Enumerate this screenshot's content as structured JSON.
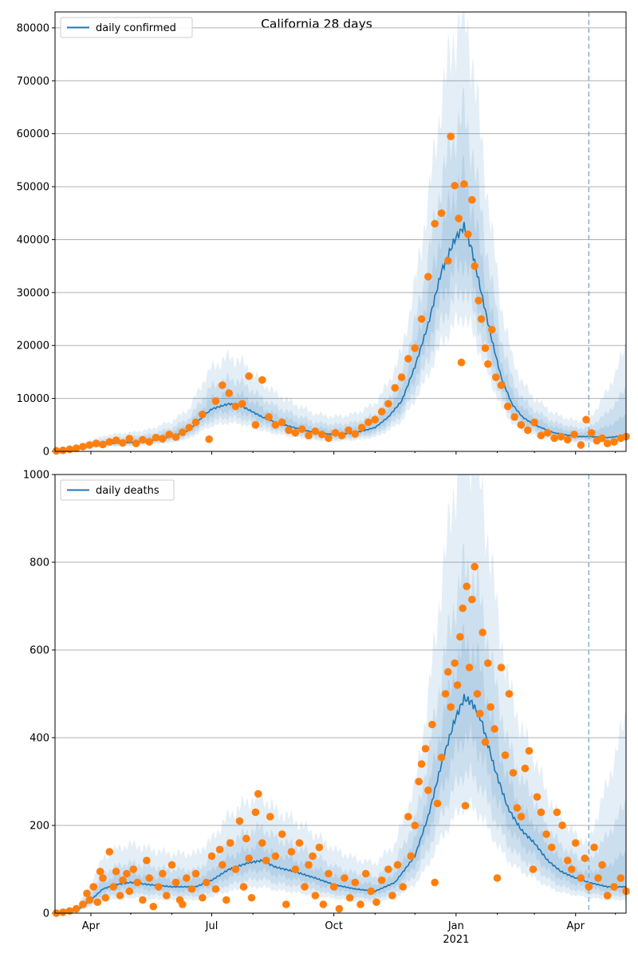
{
  "chart_data": [
    {
      "type": "line",
      "title": "California 28 days",
      "legend": {
        "label": "daily confirmed",
        "placement": "top-left"
      },
      "ylim": [
        0,
        83000
      ],
      "yticks": [
        0,
        10000,
        20000,
        30000,
        40000,
        50000,
        60000,
        70000,
        80000
      ],
      "grid": "y",
      "x_unit": "days since 2020-03-01",
      "xlim": [
        4,
        434
      ],
      "forecast_start_day": 406,
      "band_factors": {
        "outer": [
          0.6,
          1.95
        ],
        "mid": [
          0.72,
          1.5
        ],
        "inner": [
          0.85,
          1.22
        ]
      },
      "median": [
        [
          4,
          0
        ],
        [
          20,
          300
        ],
        [
          31,
          1000
        ],
        [
          45,
          1500
        ],
        [
          61,
          1700
        ],
        [
          75,
          2000
        ],
        [
          92,
          2800
        ],
        [
          105,
          4000
        ],
        [
          115,
          6500
        ],
        [
          122,
          8000
        ],
        [
          135,
          9000
        ],
        [
          145,
          8500
        ],
        [
          160,
          6500
        ],
        [
          170,
          5500
        ],
        [
          184,
          4500
        ],
        [
          200,
          3500
        ],
        [
          214,
          3200
        ],
        [
          230,
          3500
        ],
        [
          245,
          4500
        ],
        [
          255,
          6500
        ],
        [
          265,
          9500
        ],
        [
          275,
          16000
        ],
        [
          285,
          24000
        ],
        [
          295,
          34000
        ],
        [
          305,
          40000
        ],
        [
          312,
          42500
        ],
        [
          318,
          38000
        ],
        [
          325,
          30000
        ],
        [
          333,
          21000
        ],
        [
          340,
          14000
        ],
        [
          348,
          9000
        ],
        [
          356,
          6500
        ],
        [
          365,
          5000
        ],
        [
          380,
          3500
        ],
        [
          396,
          2800
        ],
        [
          406,
          2800
        ],
        [
          420,
          2600
        ],
        [
          434,
          3000
        ]
      ],
      "observed": [
        [
          5,
          100
        ],
        [
          10,
          200
        ],
        [
          15,
          400
        ],
        [
          20,
          600
        ],
        [
          25,
          900
        ],
        [
          30,
          1200
        ],
        [
          35,
          1500
        ],
        [
          40,
          1300
        ],
        [
          45,
          1800
        ],
        [
          50,
          2100
        ],
        [
          55,
          1600
        ],
        [
          60,
          2400
        ],
        [
          65,
          1500
        ],
        [
          70,
          2200
        ],
        [
          75,
          1800
        ],
        [
          80,
          2600
        ],
        [
          85,
          2400
        ],
        [
          90,
          3200
        ],
        [
          95,
          2700
        ],
        [
          100,
          3600
        ],
        [
          105,
          4500
        ],
        [
          110,
          5500
        ],
        [
          115,
          7000
        ],
        [
          120,
          2300
        ],
        [
          125,
          9500
        ],
        [
          130,
          12500
        ],
        [
          135,
          11000
        ],
        [
          140,
          8500
        ],
        [
          145,
          9000
        ],
        [
          150,
          14200
        ],
        [
          155,
          5000
        ],
        [
          160,
          13500
        ],
        [
          165,
          6500
        ],
        [
          170,
          5000
        ],
        [
          175,
          5500
        ],
        [
          180,
          4000
        ],
        [
          185,
          3500
        ],
        [
          190,
          4200
        ],
        [
          195,
          3000
        ],
        [
          200,
          3800
        ],
        [
          205,
          3200
        ],
        [
          210,
          2500
        ],
        [
          215,
          3500
        ],
        [
          220,
          3000
        ],
        [
          225,
          4000
        ],
        [
          230,
          3300
        ],
        [
          235,
          4500
        ],
        [
          240,
          5500
        ],
        [
          245,
          6000
        ],
        [
          250,
          7500
        ],
        [
          255,
          9000
        ],
        [
          260,
          12000
        ],
        [
          265,
          14000
        ],
        [
          270,
          17500
        ],
        [
          275,
          19500
        ],
        [
          280,
          25000
        ],
        [
          285,
          33000
        ],
        [
          290,
          43000
        ],
        [
          295,
          45000
        ],
        [
          300,
          36000
        ],
        [
          302,
          59500
        ],
        [
          305,
          50200
        ],
        [
          308,
          44000
        ],
        [
          310,
          16800
        ],
        [
          312,
          50500
        ],
        [
          315,
          41000
        ],
        [
          318,
          47500
        ],
        [
          320,
          35000
        ],
        [
          323,
          28500
        ],
        [
          325,
          25000
        ],
        [
          328,
          19500
        ],
        [
          330,
          16500
        ],
        [
          333,
          23000
        ],
        [
          336,
          14000
        ],
        [
          340,
          12500
        ],
        [
          345,
          8500
        ],
        [
          350,
          6500
        ],
        [
          355,
          5000
        ],
        [
          360,
          4000
        ],
        [
          365,
          5500
        ],
        [
          370,
          3000
        ],
        [
          375,
          3500
        ],
        [
          380,
          2500
        ],
        [
          385,
          2800
        ],
        [
          390,
          2200
        ],
        [
          395,
          3200
        ],
        [
          400,
          1200
        ],
        [
          404,
          6000
        ],
        [
          408,
          3500
        ],
        [
          412,
          2000
        ],
        [
          416,
          2500
        ],
        [
          420,
          1500
        ],
        [
          425,
          1800
        ],
        [
          430,
          2500
        ],
        [
          434,
          2800
        ]
      ]
    },
    {
      "type": "line",
      "title": "",
      "legend": {
        "label": "daily deaths",
        "placement": "top-left"
      },
      "ylim": [
        0,
        1000
      ],
      "yticks": [
        0,
        200,
        400,
        600,
        800,
        1000
      ],
      "grid": "y",
      "x_unit": "days since 2020-03-01",
      "xlim": [
        4,
        434
      ],
      "forecast_start_day": 406,
      "band_factors": {
        "outer": [
          0.5,
          2.2
        ],
        "mid": [
          0.65,
          1.6
        ],
        "inner": [
          0.82,
          1.25
        ]
      },
      "median": [
        [
          4,
          0
        ],
        [
          20,
          5
        ],
        [
          31,
          30
        ],
        [
          40,
          55
        ],
        [
          50,
          65
        ],
        [
          61,
          70
        ],
        [
          75,
          65
        ],
        [
          92,
          60
        ],
        [
          110,
          60
        ],
        [
          122,
          75
        ],
        [
          135,
          100
        ],
        [
          150,
          115
        ],
        [
          160,
          120
        ],
        [
          170,
          105
        ],
        [
          184,
          95
        ],
        [
          200,
          80
        ],
        [
          214,
          65
        ],
        [
          230,
          55
        ],
        [
          245,
          50
        ],
        [
          260,
          70
        ],
        [
          275,
          130
        ],
        [
          285,
          220
        ],
        [
          295,
          340
        ],
        [
          305,
          440
        ],
        [
          312,
          490
        ],
        [
          318,
          480
        ],
        [
          325,
          440
        ],
        [
          335,
          330
        ],
        [
          345,
          240
        ],
        [
          355,
          190
        ],
        [
          365,
          160
        ],
        [
          375,
          120
        ],
        [
          385,
          95
        ],
        [
          396,
          80
        ],
        [
          406,
          70
        ],
        [
          420,
          60
        ],
        [
          434,
          60
        ]
      ],
      "observed": [
        [
          5,
          0
        ],
        [
          10,
          2
        ],
        [
          15,
          5
        ],
        [
          20,
          10
        ],
        [
          25,
          20
        ],
        [
          28,
          45
        ],
        [
          30,
          30
        ],
        [
          33,
          60
        ],
        [
          36,
          25
        ],
        [
          38,
          95
        ],
        [
          40,
          80
        ],
        [
          42,
          35
        ],
        [
          45,
          140
        ],
        [
          48,
          60
        ],
        [
          50,
          95
        ],
        [
          53,
          40
        ],
        [
          55,
          75
        ],
        [
          58,
          90
        ],
        [
          60,
          50
        ],
        [
          63,
          100
        ],
        [
          66,
          70
        ],
        [
          70,
          30
        ],
        [
          73,
          120
        ],
        [
          75,
          80
        ],
        [
          78,
          15
        ],
        [
          82,
          60
        ],
        [
          85,
          90
        ],
        [
          88,
          40
        ],
        [
          92,
          110
        ],
        [
          95,
          70
        ],
        [
          98,
          30
        ],
        [
          100,
          20
        ],
        [
          103,
          80
        ],
        [
          107,
          55
        ],
        [
          110,
          90
        ],
        [
          115,
          35
        ],
        [
          118,
          70
        ],
        [
          122,
          130
        ],
        [
          125,
          55
        ],
        [
          128,
          145
        ],
        [
          130,
          110
        ],
        [
          133,
          30
        ],
        [
          136,
          160
        ],
        [
          140,
          100
        ],
        [
          143,
          210
        ],
        [
          146,
          60
        ],
        [
          148,
          170
        ],
        [
          150,
          125
        ],
        [
          152,
          35
        ],
        [
          155,
          230
        ],
        [
          157,
          272
        ],
        [
          160,
          160
        ],
        [
          163,
          120
        ],
        [
          166,
          220
        ],
        [
          170,
          130
        ],
        [
          175,
          180
        ],
        [
          178,
          20
        ],
        [
          182,
          140
        ],
        [
          185,
          100
        ],
        [
          188,
          160
        ],
        [
          192,
          60
        ],
        [
          195,
          110
        ],
        [
          198,
          130
        ],
        [
          200,
          40
        ],
        [
          203,
          150
        ],
        [
          206,
          20
        ],
        [
          210,
          90
        ],
        [
          214,
          60
        ],
        [
          218,
          10
        ],
        [
          222,
          80
        ],
        [
          226,
          35
        ],
        [
          230,
          70
        ],
        [
          234,
          20
        ],
        [
          238,
          90
        ],
        [
          242,
          50
        ],
        [
          246,
          25
        ],
        [
          250,
          75
        ],
        [
          255,
          100
        ],
        [
          258,
          40
        ],
        [
          262,
          110
        ],
        [
          266,
          60
        ],
        [
          270,
          220
        ],
        [
          272,
          130
        ],
        [
          275,
          200
        ],
        [
          278,
          300
        ],
        [
          280,
          340
        ],
        [
          283,
          375
        ],
        [
          285,
          280
        ],
        [
          288,
          430
        ],
        [
          290,
          70
        ],
        [
          292,
          250
        ],
        [
          295,
          355
        ],
        [
          298,
          500
        ],
        [
          300,
          550
        ],
        [
          302,
          470
        ],
        [
          305,
          570
        ],
        [
          307,
          520
        ],
        [
          309,
          630
        ],
        [
          311,
          695
        ],
        [
          313,
          245
        ],
        [
          314,
          745
        ],
        [
          316,
          560
        ],
        [
          318,
          715
        ],
        [
          320,
          790
        ],
        [
          322,
          500
        ],
        [
          324,
          455
        ],
        [
          326,
          640
        ],
        [
          328,
          390
        ],
        [
          330,
          570
        ],
        [
          332,
          470
        ],
        [
          335,
          420
        ],
        [
          337,
          80
        ],
        [
          340,
          560
        ],
        [
          343,
          360
        ],
        [
          346,
          500
        ],
        [
          349,
          320
        ],
        [
          352,
          240
        ],
        [
          355,
          220
        ],
        [
          358,
          330
        ],
        [
          361,
          370
        ],
        [
          364,
          100
        ],
        [
          367,
          265
        ],
        [
          370,
          230
        ],
        [
          374,
          180
        ],
        [
          378,
          150
        ],
        [
          382,
          230
        ],
        [
          386,
          200
        ],
        [
          390,
          120
        ],
        [
          393,
          100
        ],
        [
          396,
          160
        ],
        [
          400,
          80
        ],
        [
          403,
          125
        ],
        [
          406,
          60
        ],
        [
          410,
          150
        ],
        [
          413,
          80
        ],
        [
          416,
          110
        ],
        [
          420,
          40
        ],
        [
          425,
          60
        ],
        [
          430,
          80
        ],
        [
          434,
          50
        ]
      ]
    }
  ],
  "x_axis": {
    "major_ticks": [
      {
        "day": 31,
        "label": "Apr"
      },
      {
        "day": 122,
        "label": "Jul"
      },
      {
        "day": 214,
        "label": "Oct"
      },
      {
        "day": 306,
        "label": "Jan"
      },
      {
        "day": 396,
        "label": "Apr"
      }
    ],
    "minor_ticks": [
      61,
      92,
      153,
      184,
      245,
      275,
      337,
      365,
      426
    ],
    "year_label": {
      "day": 306,
      "label": "2021"
    }
  },
  "colors": {
    "line": "#1f77b4",
    "points": "#ff7f0e",
    "band": "#1f77b4",
    "grid": "#b0b0b0",
    "forecast_line": "#7fb0d6"
  }
}
